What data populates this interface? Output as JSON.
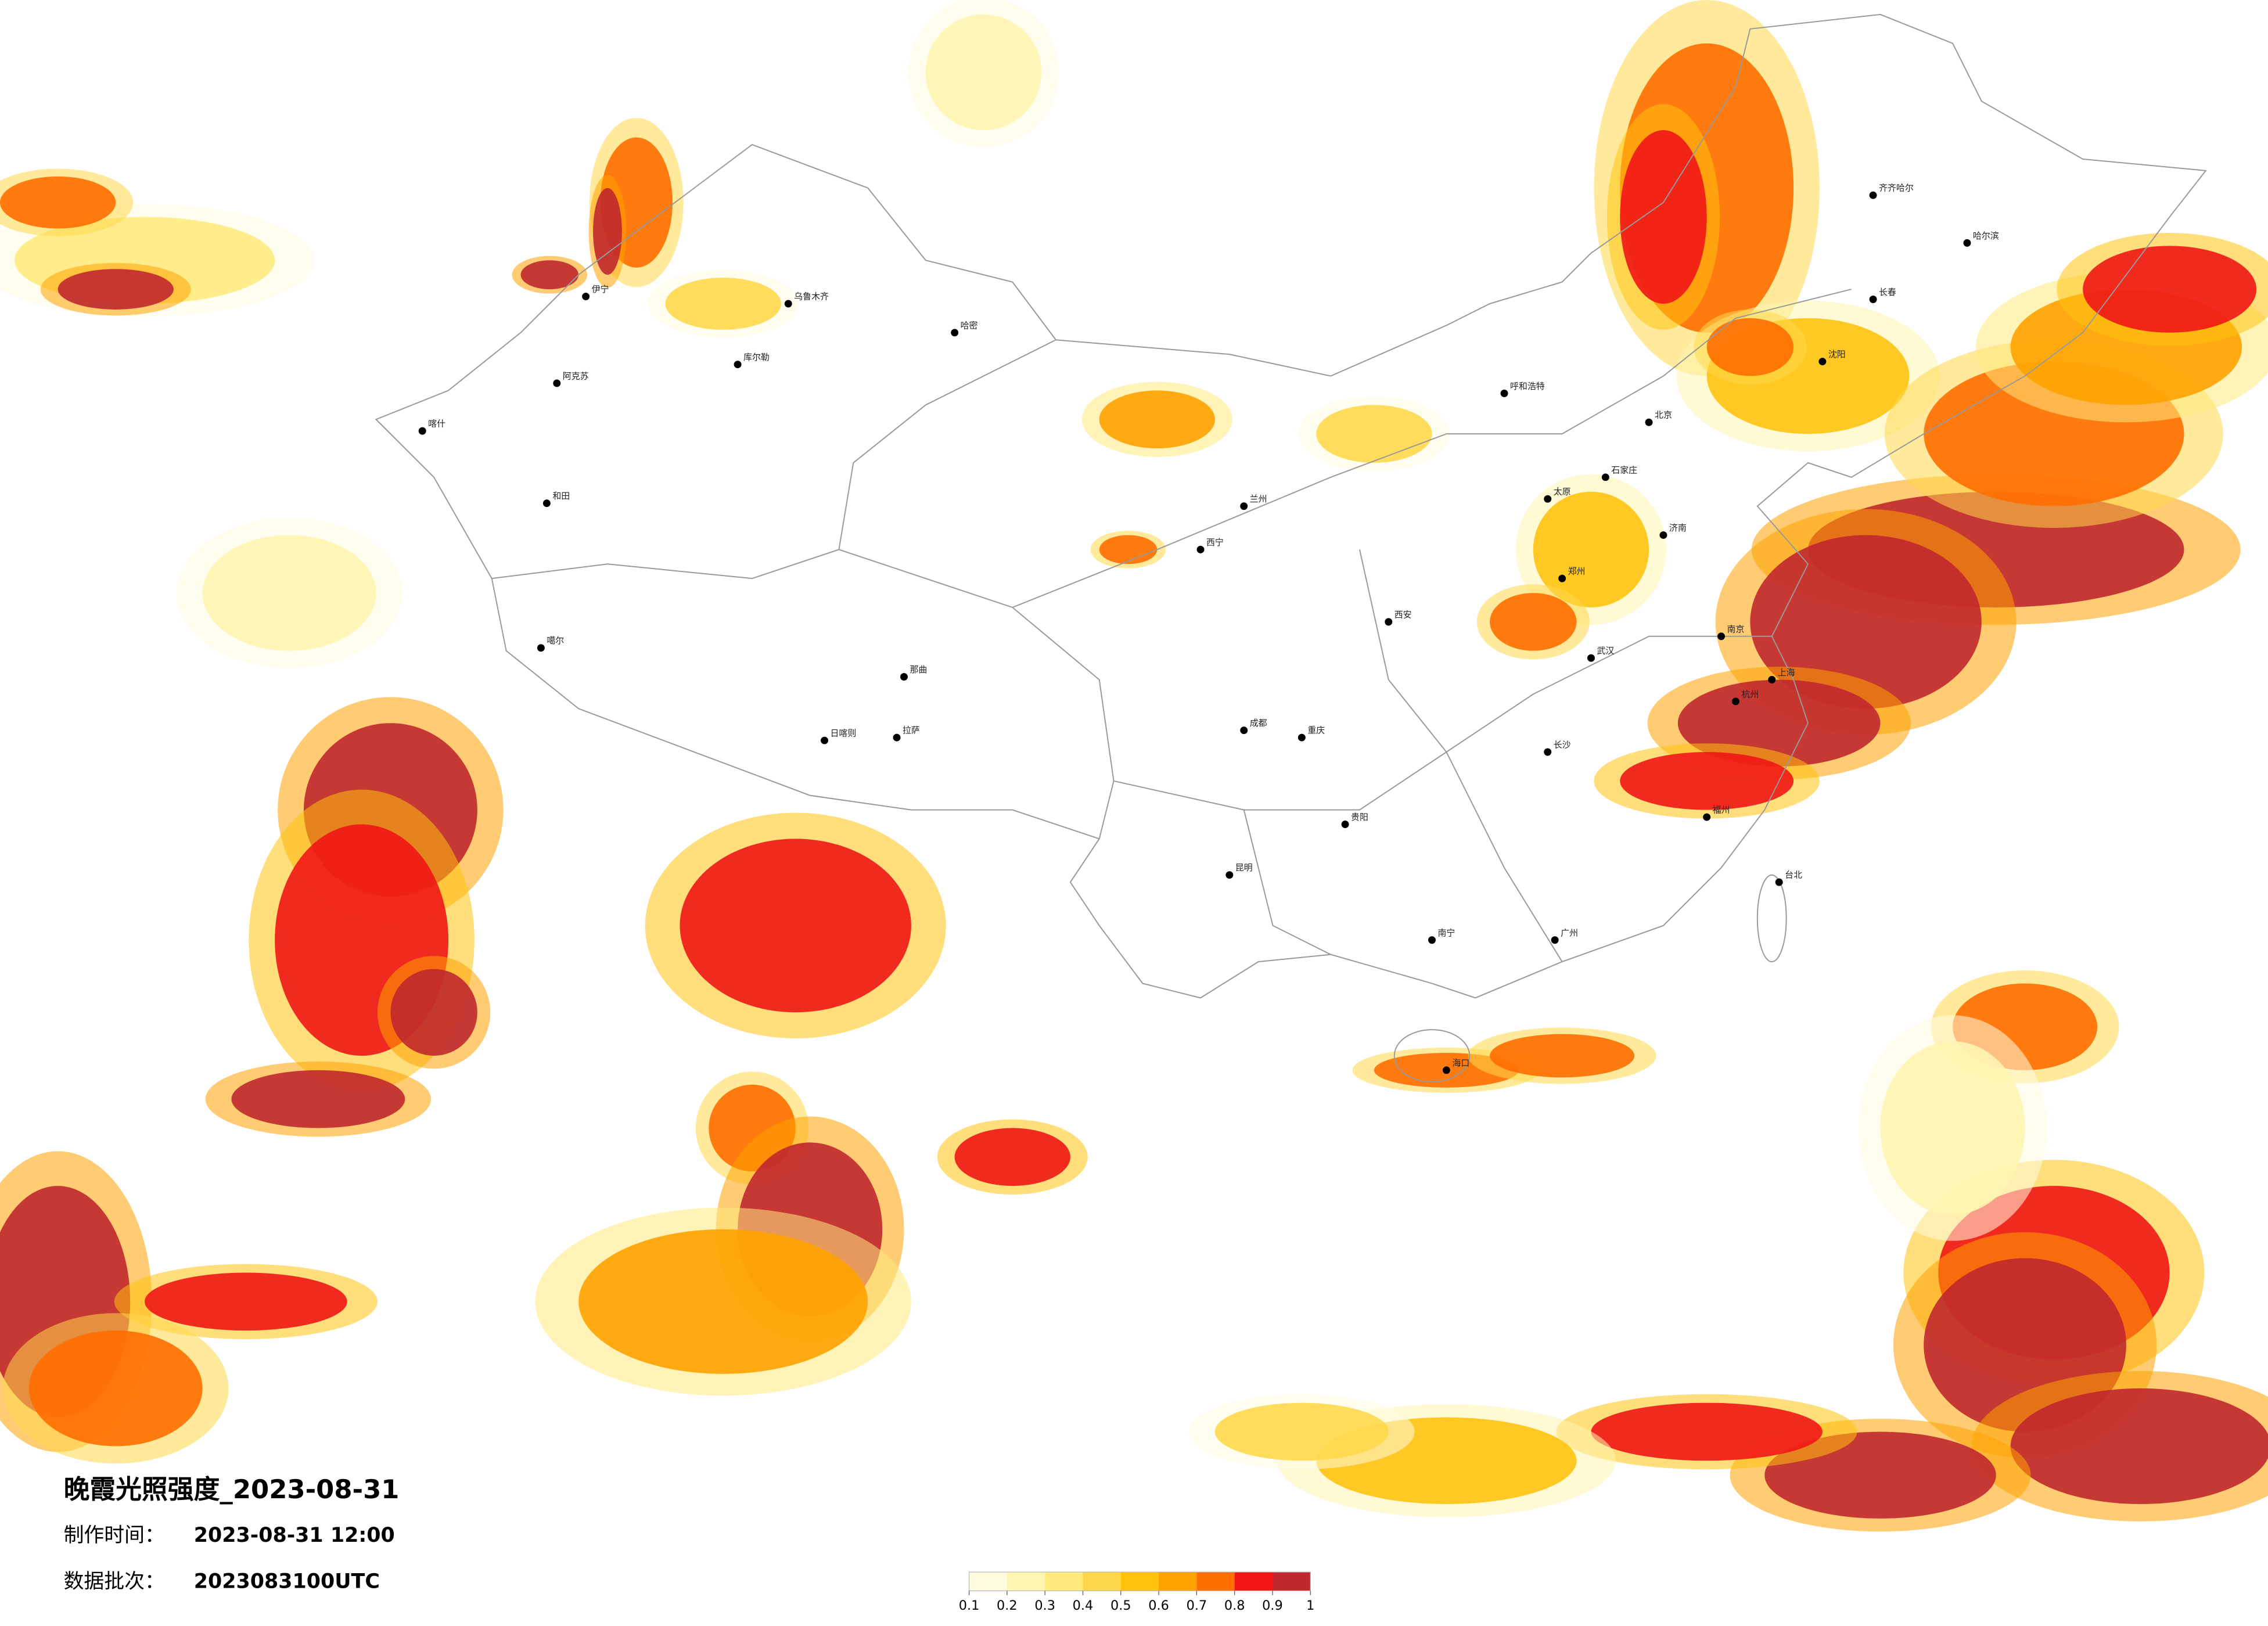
{
  "header": {
    "title": "晚霞光照强度_2023-08-31",
    "made_label": "制作时间：",
    "made_time": "2023-08-31 12:00",
    "batch_label": "数据批次：",
    "batch": "2023083100UTC"
  },
  "legend": {
    "ticks": [
      0.1,
      0.2,
      0.3,
      0.4,
      0.5,
      0.6,
      0.7,
      0.8,
      0.9,
      1
    ],
    "colors": [
      "#fffce0",
      "#fff4b0",
      "#ffea7e",
      "#ffd84a",
      "#ffc20e",
      "#ffa200",
      "#ff6e00",
      "#f01616",
      "#c0282d"
    ]
  },
  "cities": [
    "伊宁",
    "阿克苏",
    "和田",
    "喀什",
    "乌鲁木齐",
    "库尔勒",
    "哈密",
    "噶尔",
    "日喀则",
    "拉萨",
    "那曲",
    "西宁",
    "兰州",
    "呼和浩特",
    "北京",
    "石家庄",
    "太原",
    "西安",
    "郑州",
    "武汉",
    "成都",
    "重庆",
    "贵阳",
    "昆明",
    "长沙",
    "南宁",
    "广州",
    "海口",
    "上海",
    "南京",
    "杭州",
    "福州",
    "台北",
    "济南",
    "沈阳",
    "长春",
    "哈尔滨",
    "齐齐哈尔"
  ]
}
